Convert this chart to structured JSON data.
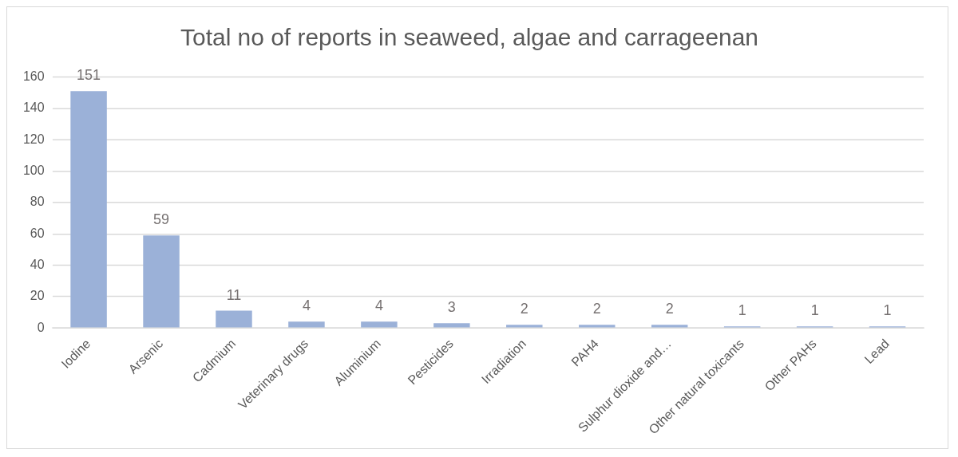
{
  "chart_data": {
    "type": "bar",
    "title": "Total no of reports in seaweed, algae and carrageenan",
    "categories": [
      "Iodine",
      "Arsenic",
      "Cadmium",
      "Veterinary drugs",
      "Aluminium",
      "Pesticides",
      "Irradiation",
      "PAH4",
      "Sulphur dioxide and…",
      "Other natural toxicants",
      "Other PAHs",
      "Lead"
    ],
    "values": [
      151,
      59,
      11,
      4,
      4,
      3,
      2,
      2,
      2,
      1,
      1,
      1
    ],
    "color": "#9bb1d8",
    "ylim": [
      0,
      160
    ],
    "yticks": [
      0,
      20,
      40,
      60,
      80,
      100,
      120,
      140,
      160
    ],
    "grid": "y",
    "data_labels": true
  }
}
